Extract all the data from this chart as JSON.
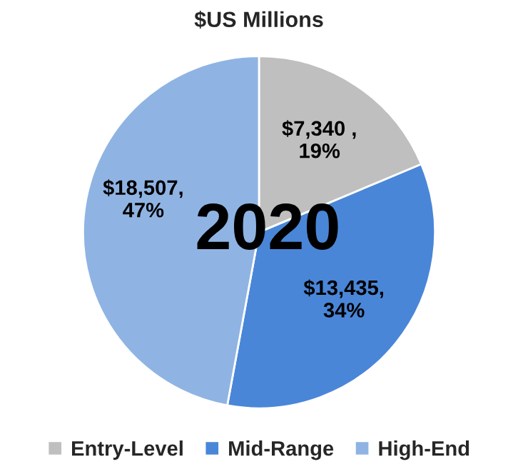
{
  "chart_data": {
    "type": "pie",
    "title": "$US Millions",
    "categories": [
      "Entry-Level",
      "Mid-Range",
      "High-End"
    ],
    "values": [
      7340,
      13435,
      18507
    ],
    "colors": [
      "#bfbfbf",
      "#4a86d8",
      "#8fb4e3"
    ],
    "value_labels": [
      "$7,340 ,\n19%",
      "$13,435,\n34%",
      "$18,507,\n47%"
    ],
    "annotations": [
      "2020"
    ],
    "legend": "bottom"
  }
}
